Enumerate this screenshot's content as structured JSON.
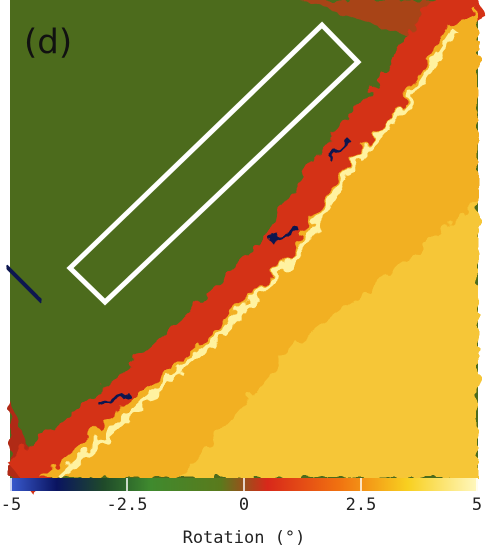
{
  "chart_data": {
    "type": "heatmap",
    "title": "(d)",
    "colorbar_label": "Rotation (°)",
    "clim": [
      -5,
      5
    ],
    "cticks": [
      -5,
      -2.5,
      0,
      2.5,
      5
    ]
  }
}
